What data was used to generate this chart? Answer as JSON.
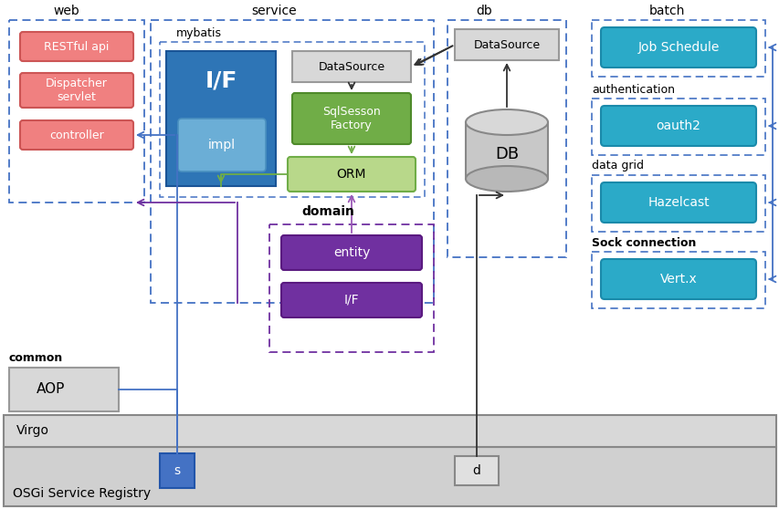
{
  "bg_color": "#ffffff",
  "web_label": "web",
  "service_label": "service",
  "mybatis_label": "mybatis",
  "db_label": "db",
  "batch_label": "batch",
  "domain_label": "domain",
  "common_label": "common",
  "auth_label": "authentication",
  "datagrid_label": "data grid",
  "sock_label": "Sock connection",
  "virgo_label": "Virgo",
  "osgi_label": "OSGi Service Registry",
  "restful_text": "RESTful api",
  "dispatcher_text": "Dispatcher\nservlet",
  "controller_text": "controller",
  "if_text": "I/F",
  "impl_text": "impl",
  "datasource_svc_text": "DataSource",
  "sqlsession_text": "SqlSesson\nFactory",
  "orm_text": "ORM",
  "db_datasource_text": "DataSource",
  "db_cylinder_text": "DB",
  "entity_text": "entity",
  "domain_if_text": "I/F",
  "aop_text": "AOP",
  "job_text": "Job Schedule",
  "oauth_text": "oauth2",
  "hazel_text": "Hazelcast",
  "vert_text": "Vert.x",
  "s_text": "s",
  "d_text": "d"
}
